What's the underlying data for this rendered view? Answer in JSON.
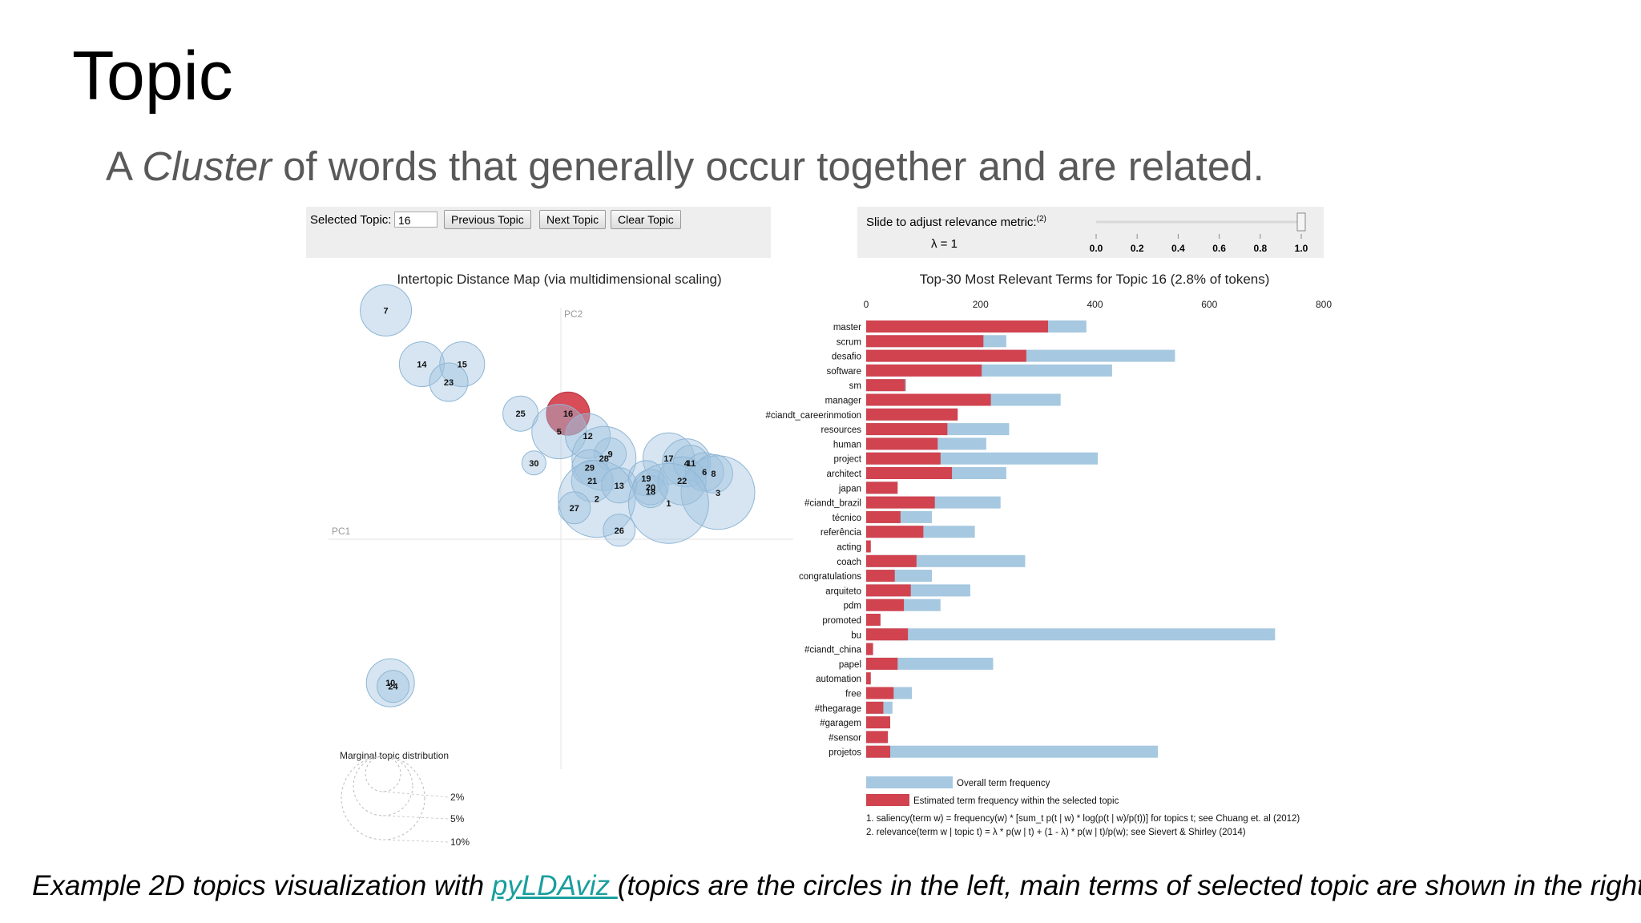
{
  "slide": {
    "title": "Topic",
    "subtitle_pre": "A ",
    "subtitle_em": "Cluster",
    "subtitle_post": " of words that generally occur together and are related.",
    "caption_pre": "Example 2D topics visualization with ",
    "caption_link": "pyLDAviz ",
    "caption_post": "(topics are the circles in the left, main terms of selected topic are shown in the right)"
  },
  "controls": {
    "selected_label": "Selected Topic:",
    "selected_value": "16",
    "prev_label": "Previous Topic",
    "next_label": "Next Topic",
    "clear_label": "Clear Topic",
    "slider_label": "Slide to adjust relevance metric:",
    "slider_sup": "(2)",
    "lambda_text": "λ = 1",
    "slider_ticks": [
      "0.0",
      "0.2",
      "0.4",
      "0.6",
      "0.8",
      "1.0"
    ],
    "lambda_value": 1.0
  },
  "map": {
    "title": "Intertopic Distance Map (via multidimensional scaling)",
    "pc1": "PC1",
    "pc2": "PC2",
    "marginal_title": "Marginal topic distribution",
    "marginal_levels": [
      "2%",
      "5%",
      "10%"
    ]
  },
  "colors": {
    "bubble": "#9ec2de",
    "selected": "#d6434f",
    "overall": "#a6c8e0",
    "estimated": "#d0434f"
  },
  "chart_data": [
    {
      "type": "scatter",
      "title": "Intertopic Distance Map (via multidimensional scaling)",
      "xlabel": "PC1",
      "ylabel": "PC2",
      "selected": "16",
      "topics": [
        {
          "label": "7",
          "x": -0.195,
          "y": 0.255,
          "r": 32
        },
        {
          "label": "14",
          "x": -0.155,
          "y": 0.195,
          "r": 28
        },
        {
          "label": "15",
          "x": -0.11,
          "y": 0.195,
          "r": 28
        },
        {
          "label": "23",
          "x": -0.125,
          "y": 0.175,
          "r": 24
        },
        {
          "label": "25",
          "x": -0.045,
          "y": 0.14,
          "r": 22
        },
        {
          "label": "16",
          "x": 0.008,
          "y": 0.14,
          "r": 27
        },
        {
          "label": "5",
          "x": -0.002,
          "y": 0.12,
          "r": 34
        },
        {
          "label": "12",
          "x": 0.03,
          "y": 0.115,
          "r": 28
        },
        {
          "label": "9",
          "x": 0.055,
          "y": 0.095,
          "r": 20
        },
        {
          "label": "28",
          "x": 0.048,
          "y": 0.09,
          "r": 40
        },
        {
          "label": "29",
          "x": 0.032,
          "y": 0.08,
          "r": 22
        },
        {
          "label": "30",
          "x": -0.03,
          "y": 0.085,
          "r": 15
        },
        {
          "label": "21",
          "x": 0.035,
          "y": 0.065,
          "r": 26
        },
        {
          "label": "13",
          "x": 0.065,
          "y": 0.06,
          "r": 22
        },
        {
          "label": "2",
          "x": 0.04,
          "y": 0.045,
          "r": 48
        },
        {
          "label": "27",
          "x": 0.015,
          "y": 0.035,
          "r": 20
        },
        {
          "label": "26",
          "x": 0.065,
          "y": 0.01,
          "r": 20
        },
        {
          "label": "17",
          "x": 0.12,
          "y": 0.09,
          "r": 32
        },
        {
          "label": "19",
          "x": 0.095,
          "y": 0.068,
          "r": 22
        },
        {
          "label": "20",
          "x": 0.1,
          "y": 0.058,
          "r": 22
        },
        {
          "label": "18",
          "x": 0.1,
          "y": 0.053,
          "r": 20
        },
        {
          "label": "4",
          "x": 0.14,
          "y": 0.085,
          "r": 30
        },
        {
          "label": "11",
          "x": 0.145,
          "y": 0.085,
          "r": 22
        },
        {
          "label": "6",
          "x": 0.16,
          "y": 0.075,
          "r": 24
        },
        {
          "label": "8",
          "x": 0.17,
          "y": 0.073,
          "r": 24
        },
        {
          "label": "22",
          "x": 0.135,
          "y": 0.065,
          "r": 30
        },
        {
          "label": "3",
          "x": 0.175,
          "y": 0.052,
          "r": 46
        },
        {
          "label": "1",
          "x": 0.12,
          "y": 0.04,
          "r": 50
        },
        {
          "label": "10",
          "x": -0.19,
          "y": -0.16,
          "r": 30
        },
        {
          "label": "24",
          "x": -0.187,
          "y": -0.164,
          "r": 20
        }
      ]
    },
    {
      "type": "bar",
      "title": "Top-30 Most Relevant Terms for Topic 16 (2.8% of tokens)",
      "xlim": [
        0,
        800
      ],
      "xticks": [
        0,
        200,
        400,
        600,
        800
      ],
      "series_names": [
        "Overall term frequency",
        "Estimated term frequency within the selected topic"
      ],
      "terms": [
        "master",
        "scrum",
        "desafio",
        "software",
        "sm",
        "manager",
        "#ciandt_careerinmotion",
        "resources",
        "human",
        "project",
        "architect",
        "japan",
        "#ciandt_brazil",
        "técnico",
        "referência",
        "acting",
        "coach",
        "congratulations",
        "arquiteto",
        "pdm",
        "promoted",
        "bu",
        "#ciandt_china",
        "papel",
        "automation",
        "free",
        "#thegarage",
        "#garagem",
        "#sensor",
        "projetos"
      ],
      "overall": [
        385,
        245,
        540,
        430,
        70,
        340,
        160,
        250,
        210,
        405,
        245,
        55,
        235,
        115,
        190,
        8,
        278,
        115,
        182,
        130,
        25,
        715,
        12,
        222,
        8,
        80,
        46,
        42,
        38,
        510
      ],
      "estimated": [
        318,
        205,
        280,
        202,
        68,
        218,
        160,
        142,
        125,
        130,
        150,
        55,
        120,
        60,
        100,
        8,
        88,
        50,
        78,
        66,
        25,
        73,
        12,
        55,
        8,
        48,
        30,
        42,
        38,
        42
      ]
    }
  ],
  "footnotes": [
    "1. saliency(term w) = frequency(w) * [sum_t p(t | w) * log(p(t | w)/p(t))] for topics t; see Chuang et. al (2012)",
    "2. relevance(term w | topic t) = λ * p(w | t) + (1 - λ) * p(w | t)/p(w); see Sievert & Shirley (2014)"
  ]
}
